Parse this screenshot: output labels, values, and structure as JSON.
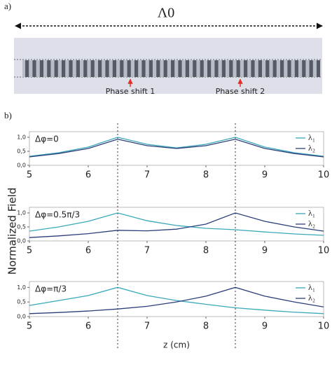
{
  "figure": {
    "panel_a_label": "a)",
    "period_label": "Λ0",
    "phase_shifts": [
      "Phase shift 1",
      "Phase shift 2"
    ],
    "panel_b_label": "b)",
    "ylabel": "Normalized Field",
    "xlabel": "z (cm)"
  },
  "chart_data": [
    {
      "type": "line",
      "annotation": "Δφ=0",
      "x": [
        5,
        5.5,
        6,
        6.5,
        7,
        7.5,
        8,
        8.5,
        9,
        9.5,
        10
      ],
      "series": [
        {
          "name": "λ₁",
          "color": "#3aa8b8",
          "values": [
            0.32,
            0.45,
            0.65,
            1.0,
            0.75,
            0.62,
            0.75,
            1.0,
            0.65,
            0.45,
            0.32
          ]
        },
        {
          "name": "λ₂",
          "color": "#2c3e7a",
          "values": [
            0.3,
            0.42,
            0.6,
            0.93,
            0.7,
            0.6,
            0.7,
            0.93,
            0.6,
            0.42,
            0.3
          ]
        }
      ],
      "xlim": [
        5,
        10
      ],
      "xticks": [
        5,
        6,
        7,
        8,
        9,
        10
      ],
      "ylim": [
        0,
        1.2
      ],
      "yticks": [
        {
          "value": 0,
          "label": "0,0"
        },
        {
          "value": 0.5,
          "label": "0,5"
        },
        {
          "value": 1,
          "label": "1,0"
        }
      ],
      "vlines": [
        6.5,
        8.5
      ]
    },
    {
      "type": "line",
      "annotation": "Δφ=0.5π/3",
      "x": [
        5,
        5.5,
        6,
        6.5,
        7,
        7.5,
        8,
        8.5,
        9,
        9.5,
        10
      ],
      "series": [
        {
          "name": "λ₁",
          "color": "#3aa8b8",
          "values": [
            0.35,
            0.5,
            0.7,
            1.0,
            0.72,
            0.55,
            0.45,
            0.4,
            0.32,
            0.25,
            0.2
          ]
        },
        {
          "name": "λ₂",
          "color": "#2c3e7a",
          "values": [
            0.12,
            0.18,
            0.26,
            0.38,
            0.36,
            0.42,
            0.6,
            1.0,
            0.7,
            0.5,
            0.35
          ]
        }
      ],
      "xlim": [
        5,
        10
      ],
      "xticks": [
        5,
        6,
        7,
        8,
        9,
        10
      ],
      "ylim": [
        0,
        1.2
      ],
      "yticks": [
        {
          "value": 0,
          "label": "0,0"
        },
        {
          "value": 0.5,
          "label": "0,5"
        },
        {
          "value": 1,
          "label": "1,0"
        }
      ],
      "vlines": [
        6.5,
        8.5
      ]
    },
    {
      "type": "line",
      "annotation": "Δφ=π/3",
      "x": [
        5,
        5.5,
        6,
        6.5,
        7,
        7.5,
        8,
        8.5,
        9,
        9.5,
        10
      ],
      "series": [
        {
          "name": "λ₁",
          "color": "#3aa8b8",
          "values": [
            0.38,
            0.55,
            0.72,
            1.0,
            0.72,
            0.55,
            0.42,
            0.3,
            0.22,
            0.15,
            0.1
          ]
        },
        {
          "name": "λ₂",
          "color": "#2c3e7a",
          "values": [
            0.1,
            0.14,
            0.19,
            0.26,
            0.35,
            0.5,
            0.7,
            1.0,
            0.7,
            0.5,
            0.33
          ]
        }
      ],
      "xlim": [
        5,
        10
      ],
      "xticks": [
        5,
        6,
        7,
        8,
        9,
        10
      ],
      "ylim": [
        0,
        1.2
      ],
      "yticks": [
        {
          "value": 0,
          "label": "0,0"
        },
        {
          "value": 0.5,
          "label": "0,5"
        },
        {
          "value": 1,
          "label": "1,0"
        }
      ],
      "vlines": [
        6.5,
        8.5
      ]
    }
  ]
}
